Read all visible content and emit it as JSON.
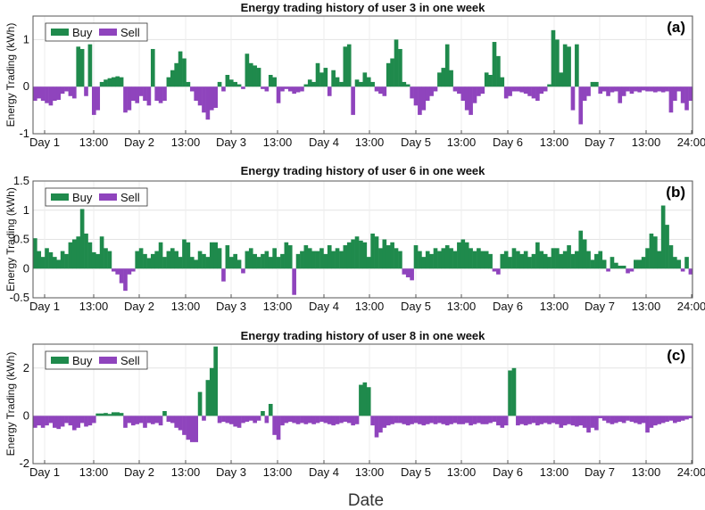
{
  "figure": {
    "xlabel": "Date"
  },
  "chart_data": [
    {
      "type": "bar",
      "panel_label": "(a)",
      "title": "Energy trading history of user 3 in one week",
      "ylabel": "Energy Trading (kWh)",
      "ylim": [
        -1,
        1.5
      ],
      "yticks": [
        -1,
        0,
        1
      ],
      "ytick_labels": [
        "-1",
        "0",
        "1"
      ],
      "grid": true,
      "legend": {
        "position": "top-left",
        "labels": [
          "Buy",
          "Sell"
        ]
      },
      "xtick_labels": [
        "Day 1",
        "13:00",
        "Day 2",
        "13:00",
        "Day 3",
        "13:00",
        "Day 4",
        "13:00",
        "Day 5",
        "13:00",
        "Day 6",
        "13:00",
        "Day 7",
        "13:00",
        "24:00"
      ],
      "colors": {
        "buy": "#1f8a4c",
        "sell": "#8f44bd"
      },
      "series": [
        {
          "name": "Day 1",
          "values": [
            -0.3,
            -0.25,
            -0.3,
            -0.35,
            -0.4,
            -0.3,
            -0.28,
            -0.15,
            -0.1,
            -0.2,
            -0.25,
            0.85,
            0.8,
            -0.2,
            0.9,
            -0.6,
            -0.5,
            0.1,
            0.15,
            0.18,
            0.2,
            0.22,
            0.2,
            -0.55
          ]
        },
        {
          "name": "Day 2",
          "values": [
            -0.5,
            -0.3,
            -0.35,
            -0.2,
            -0.3,
            -0.4,
            0.8,
            -0.3,
            -0.35,
            -0.3,
            0.2,
            0.35,
            0.5,
            0.75,
            0.6,
            0.1,
            -0.1,
            -0.3,
            -0.4,
            -0.55,
            -0.7,
            -0.5,
            -0.45,
            0.1
          ]
        },
        {
          "name": "Day 3",
          "values": [
            -0.1,
            0.25,
            0.15,
            0.1,
            0.05,
            -0.05,
            0.7,
            0.5,
            0.45,
            0.4,
            -0.05,
            -0.1,
            0.25,
            0.2,
            -0.35,
            -0.1,
            -0.05,
            -0.1,
            -0.15,
            -0.12,
            -0.1,
            0.05,
            0.15,
            0.1
          ]
        },
        {
          "name": "Day 4",
          "values": [
            0.5,
            0.3,
            0.4,
            -0.2,
            0.35,
            0.2,
            0.1,
            0.85,
            0.9,
            -0.6,
            0.15,
            0.1,
            0.3,
            0.2,
            0.1,
            -0.1,
            -0.15,
            -0.2,
            0.5,
            0.6,
            1.0,
            0.8,
            0.1,
            0.05
          ]
        },
        {
          "name": "Day 5",
          "values": [
            -0.25,
            -0.4,
            -0.6,
            -0.5,
            -0.3,
            -0.2,
            -0.1,
            0.3,
            0.4,
            0.9,
            0.35,
            -0.1,
            -0.15,
            -0.3,
            -0.5,
            -0.6,
            -0.35,
            -0.2,
            -0.15,
            0.3,
            0.25,
            0.95,
            0.65,
            0.2
          ]
        },
        {
          "name": "Day 6",
          "values": [
            -0.25,
            -0.2,
            -0.1,
            -0.1,
            -0.12,
            -0.15,
            -0.2,
            -0.25,
            -0.3,
            -0.15,
            -0.1,
            0.05,
            1.2,
            1.0,
            0.3,
            0.9,
            0.85,
            -0.5,
            0.9,
            -0.8,
            -0.3,
            -0.2,
            0.1,
            0.1
          ]
        },
        {
          "name": "Day 7",
          "values": [
            -0.15,
            -0.1,
            -0.2,
            -0.12,
            -0.1,
            -0.35,
            -0.2,
            -0.1,
            -0.15,
            -0.1,
            -0.12,
            -0.08,
            -0.1,
            -0.1,
            -0.12,
            -0.1,
            -0.12,
            -0.1,
            -0.55,
            -0.3,
            -0.1,
            -0.35,
            -0.5,
            -0.3
          ]
        }
      ]
    },
    {
      "type": "bar",
      "panel_label": "(b)",
      "title": "Energy trading history of user 6 in one week",
      "ylabel": "Energy Trading (kWh)",
      "ylim": [
        -0.5,
        1.5
      ],
      "yticks": [
        -0.5,
        0,
        0.5,
        1,
        1.5
      ],
      "ytick_labels": [
        "-0.5",
        "0",
        "0.5",
        "1",
        "1.5"
      ],
      "grid": true,
      "legend": {
        "position": "top-left",
        "labels": [
          "Buy",
          "Sell"
        ]
      },
      "xtick_labels": [
        "Day 1",
        "13:00",
        "Day 2",
        "13:00",
        "Day 3",
        "13:00",
        "Day 4",
        "13:00",
        "Day 5",
        "13:00",
        "Day 6",
        "13:00",
        "Day 7",
        "13:00",
        "24:00"
      ],
      "colors": {
        "buy": "#1f8a4c",
        "sell": "#8f44bd"
      },
      "series": [
        {
          "name": "Day 1",
          "values": [
            0.52,
            0.3,
            0.2,
            0.35,
            0.28,
            0.2,
            0.15,
            0.3,
            0.25,
            0.45,
            0.5,
            0.55,
            1.02,
            0.6,
            0.45,
            0.28,
            0.25,
            0.55,
            0.35,
            0.3,
            -0.05,
            -0.1,
            -0.25,
            -0.38
          ]
        },
        {
          "name": "Day 2",
          "values": [
            -0.1,
            -0.05,
            0.3,
            0.35,
            0.25,
            0.18,
            0.25,
            0.3,
            0.45,
            0.2,
            0.3,
            0.35,
            0.3,
            0.2,
            0.5,
            0.45,
            0.2,
            0.15,
            0.3,
            0.25,
            0.2,
            0.45,
            0.45,
            0.35
          ]
        },
        {
          "name": "Day 3",
          "values": [
            -0.22,
            0.4,
            0.2,
            0.25,
            0.15,
            -0.08,
            0.3,
            0.35,
            0.25,
            0.2,
            0.25,
            0.3,
            0.2,
            0.35,
            0.2,
            0.25,
            0.45,
            0.4,
            -0.45,
            0.25,
            0.3,
            0.4,
            0.35,
            0.3
          ]
        },
        {
          "name": "Day 4",
          "values": [
            0.3,
            0.35,
            0.25,
            0.4,
            0.3,
            0.35,
            0.3,
            0.4,
            0.45,
            0.5,
            0.55,
            0.48,
            0.45,
            0.2,
            0.6,
            0.55,
            0.35,
            0.5,
            0.4,
            0.45,
            0.35,
            0.3,
            -0.1,
            -0.15
          ]
        },
        {
          "name": "Day 5",
          "values": [
            -0.2,
            0.4,
            0.3,
            0.2,
            0.3,
            0.25,
            0.35,
            0.3,
            0.35,
            0.4,
            0.35,
            0.3,
            0.45,
            0.5,
            0.45,
            0.35,
            0.3,
            0.35,
            0.3,
            0.3,
            0.25,
            -0.05,
            -0.1,
            0.25
          ]
        },
        {
          "name": "Day 6",
          "values": [
            0.3,
            0.2,
            0.35,
            0.3,
            0.25,
            0.3,
            0.2,
            0.25,
            0.45,
            0.3,
            0.25,
            0.2,
            0.35,
            0.35,
            0.25,
            0.3,
            0.4,
            0.25,
            0.3,
            0.65,
            0.5,
            0.3,
            0.15,
            0.25
          ]
        },
        {
          "name": "Day 7",
          "values": [
            0.3,
            0.15,
            -0.05,
            0.2,
            0.1,
            0.05,
            0.05,
            -0.08,
            -0.05,
            0.15,
            0.15,
            0.2,
            0.35,
            0.6,
            0.55,
            0.3,
            1.08,
            0.75,
            0.4,
            0.2,
            0.15,
            -0.05,
            0.2,
            -0.1
          ]
        }
      ]
    },
    {
      "type": "bar",
      "panel_label": "(c)",
      "title": "Energy trading history of user 8 in one week",
      "ylabel": "Energy Trading (kWh)",
      "ylim": [
        -2,
        3
      ],
      "yticks": [
        -2,
        0,
        2
      ],
      "ytick_labels": [
        "-2",
        "0",
        "2"
      ],
      "grid": true,
      "legend": {
        "position": "top-left",
        "labels": [
          "Buy",
          "Sell"
        ]
      },
      "xtick_labels": [
        "Day 1",
        "13:00",
        "Day 2",
        "13:00",
        "Day 3",
        "13:00",
        "Day 4",
        "13:00",
        "Day 5",
        "13:00",
        "Day 6",
        "13:00",
        "Day 7",
        "13:00",
        "24:00"
      ],
      "colors": {
        "buy": "#1f8a4c",
        "sell": "#8f44bd"
      },
      "series": [
        {
          "name": "Day 1",
          "values": [
            -0.5,
            -0.4,
            -0.5,
            -0.4,
            -0.3,
            -0.5,
            -0.55,
            -0.45,
            -0.3,
            -0.4,
            -0.6,
            -0.5,
            -0.3,
            -0.45,
            -0.4,
            -0.3,
            0.1,
            0.1,
            0.12,
            0.08,
            0.15,
            0.15,
            0.12,
            -0.5
          ]
        },
        {
          "name": "Day 2",
          "values": [
            -0.3,
            -0.4,
            -0.35,
            -0.3,
            -0.5,
            -0.3,
            -0.35,
            -0.3,
            -0.4,
            0.2,
            -0.25,
            -0.3,
            -0.5,
            -0.6,
            -0.8,
            -1.0,
            -1.1,
            -1.1,
            1.0,
            -0.2,
            1.5,
            2.0,
            2.9,
            -0.3
          ]
        },
        {
          "name": "Day 3",
          "values": [
            -0.25,
            -0.3,
            -0.35,
            -0.45,
            -0.5,
            -0.3,
            -0.25,
            -0.2,
            -0.3,
            -0.2,
            0.2,
            -0.3,
            0.5,
            -0.8,
            -1.0,
            -0.4,
            -0.3,
            -0.25,
            -0.3,
            -0.35,
            -0.3,
            -0.35,
            -0.3,
            -0.35
          ]
        },
        {
          "name": "Day 4",
          "values": [
            -0.3,
            -0.25,
            -0.3,
            -0.35,
            -0.4,
            -0.35,
            -0.3,
            -0.25,
            -0.3,
            -0.4,
            -0.35,
            1.3,
            1.4,
            1.2,
            -0.4,
            -0.9,
            -0.7,
            -0.5,
            -0.4,
            -0.35,
            -0.3,
            -0.3,
            -0.35,
            -0.4
          ]
        },
        {
          "name": "Day 5",
          "values": [
            -0.35,
            -0.3,
            -0.35,
            -0.4,
            -0.35,
            -0.3,
            -0.35,
            -0.3,
            -0.35,
            -0.4,
            -0.35,
            -0.3,
            -0.35,
            -0.35,
            -0.3,
            -0.4,
            -0.35,
            -0.3,
            -0.35,
            -0.35,
            -0.3,
            -0.25,
            -0.4,
            -0.5
          ]
        },
        {
          "name": "Day 6",
          "values": [
            -0.4,
            1.9,
            2.0,
            -0.4,
            -0.35,
            -0.4,
            -0.35,
            -0.3,
            -0.4,
            -0.35,
            -0.3,
            -0.35,
            -0.3,
            -0.35,
            -0.5,
            -0.4,
            -0.35,
            -0.4,
            -0.45,
            -0.4,
            -0.5,
            -0.7,
            -0.5,
            -0.6
          ]
        },
        {
          "name": "Day 7",
          "values": [
            -0.1,
            -0.2,
            -0.3,
            -0.35,
            -0.3,
            -0.25,
            -0.3,
            -0.2,
            -0.25,
            -0.3,
            -0.35,
            -0.3,
            -0.7,
            -0.5,
            -0.4,
            -0.35,
            -0.3,
            -0.25,
            -0.2,
            -0.3,
            -0.25,
            -0.2,
            -0.15,
            -0.1
          ]
        }
      ]
    }
  ]
}
